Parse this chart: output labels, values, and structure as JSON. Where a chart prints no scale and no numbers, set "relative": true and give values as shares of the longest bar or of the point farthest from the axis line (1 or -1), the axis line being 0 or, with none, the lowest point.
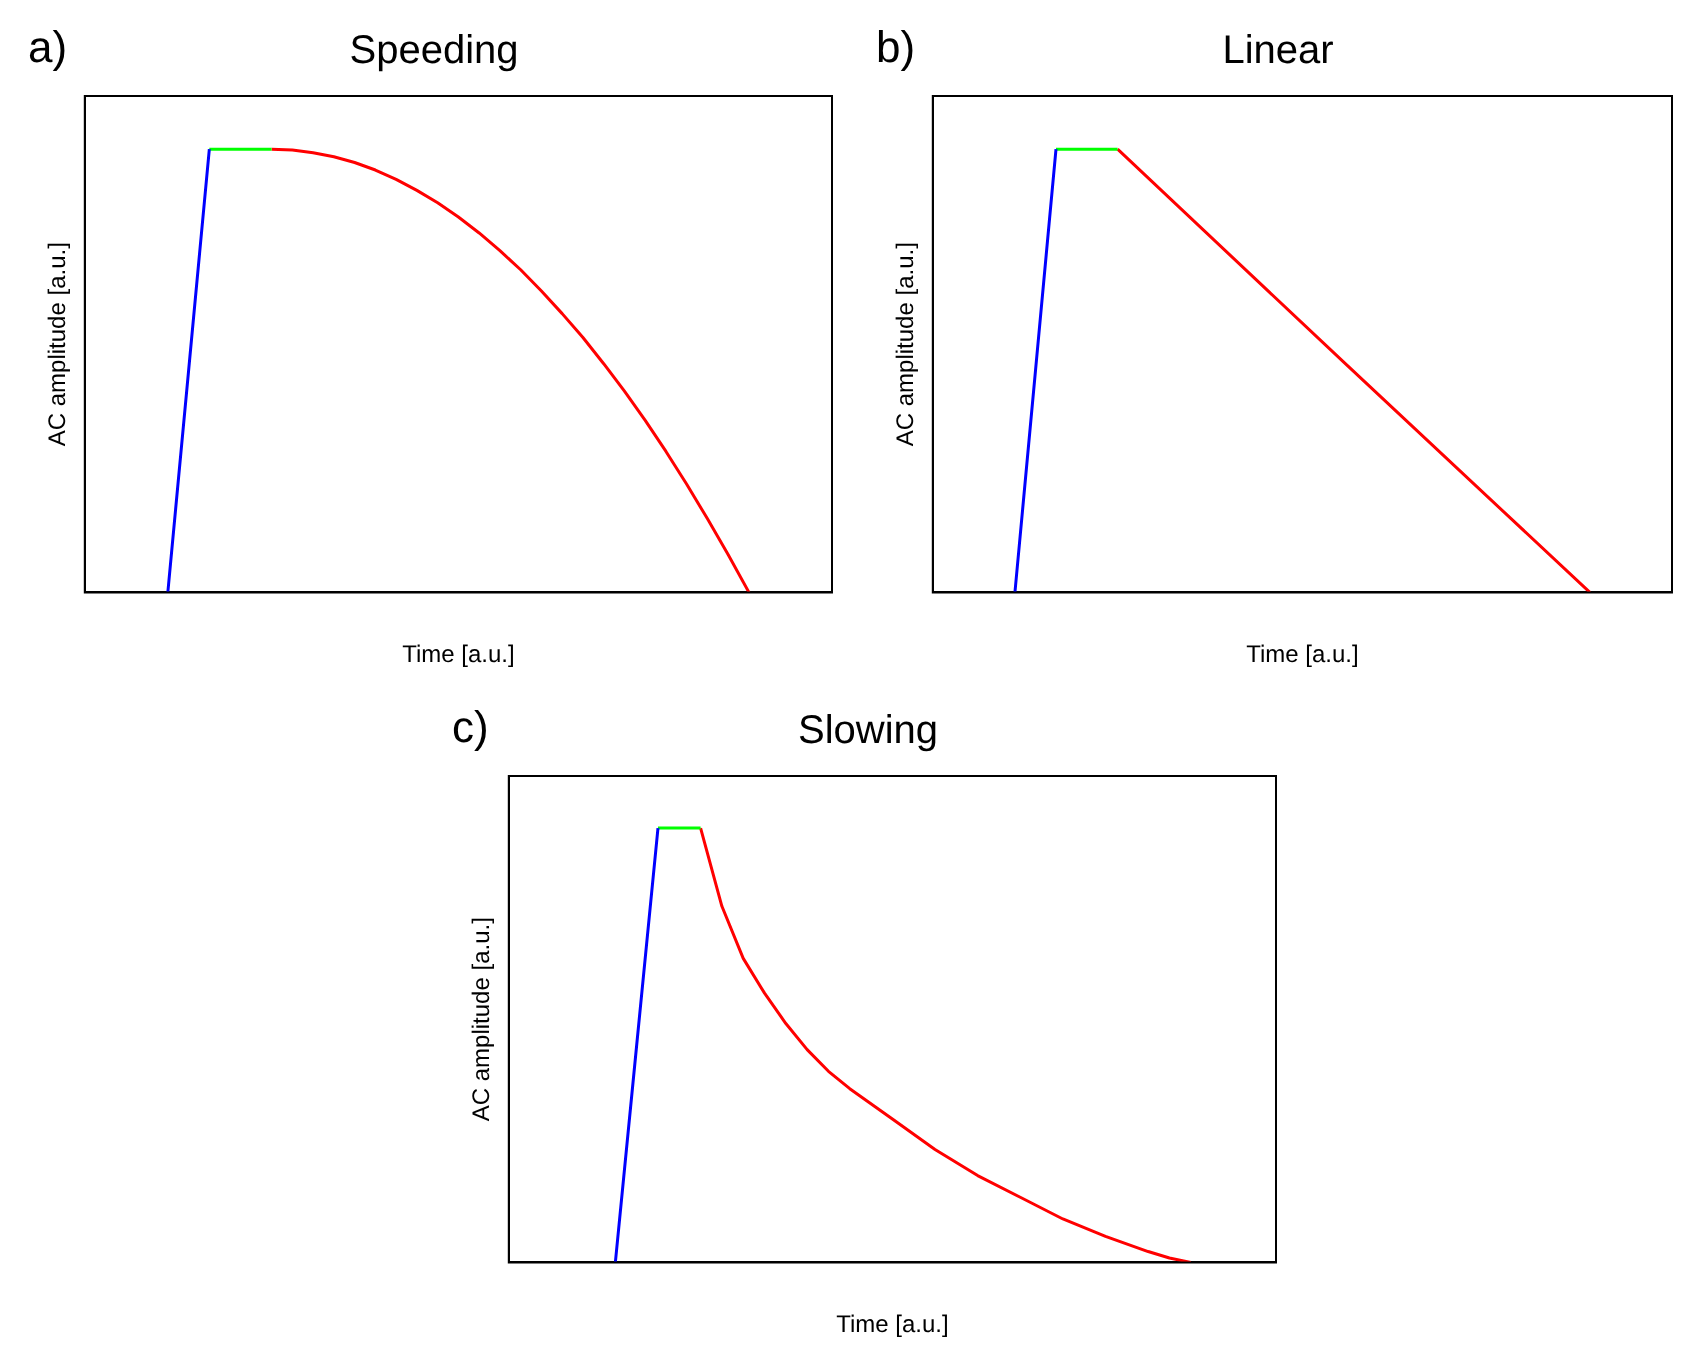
{
  "chart_data": [
    {
      "type": "line",
      "title": "Speeding",
      "xlabel": "Time [a.u.]",
      "ylabel": "AC amplitude [a.u.]",
      "annotations": [
        "a)"
      ],
      "relative": true,
      "grid": false,
      "legend": false,
      "categories": [
        null,
        null,
        null,
        null,
        null,
        null,
        null,
        null,
        null,
        null,
        null,
        null,
        null,
        null,
        null,
        null,
        null,
        null,
        null,
        null,
        null,
        null,
        null,
        null,
        null,
        null,
        null,
        null,
        null,
        null,
        null,
        null,
        null,
        null,
        null,
        null,
        null
      ],
      "series": [
        {
          "color": "#0000ff",
          "values": [
            null,
            null,
            null,
            null,
            0,
            0.5,
            1,
            null,
            null,
            null,
            null,
            null,
            null,
            null,
            null,
            null,
            null,
            null,
            null,
            null,
            null,
            null,
            null,
            null,
            null,
            null,
            null,
            null,
            null,
            null,
            null,
            null,
            null,
            null,
            null,
            null,
            null
          ]
        },
        {
          "color": "#00ff00",
          "values": [
            null,
            null,
            null,
            null,
            null,
            null,
            1,
            1,
            1,
            1,
            null,
            null,
            null,
            null,
            null,
            null,
            null,
            null,
            null,
            null,
            null,
            null,
            null,
            null,
            null,
            null,
            null,
            null,
            null,
            null,
            null,
            null,
            null,
            null,
            null,
            null,
            null
          ]
        },
        {
          "color": "#ff0000",
          "values": [
            null,
            null,
            null,
            null,
            null,
            null,
            null,
            null,
            null,
            1,
            0.998,
            0.992,
            0.983,
            0.97,
            0.953,
            0.932,
            0.907,
            0.879,
            0.847,
            0.811,
            0.771,
            0.728,
            0.68,
            0.629,
            0.575,
            0.516,
            0.454,
            0.388,
            0.318,
            0.244,
            0.166,
            0.085,
            0,
            null,
            null,
            null,
            null
          ]
        }
      ]
    },
    {
      "type": "line",
      "title": "Linear",
      "xlabel": "Time [a.u.]",
      "ylabel": "AC amplitude [a.u.]",
      "annotations": [
        "b)"
      ],
      "relative": true,
      "grid": false,
      "legend": false,
      "categories": [
        null,
        null,
        null,
        null,
        null,
        null,
        null,
        null,
        null,
        null,
        null,
        null,
        null,
        null,
        null,
        null,
        null,
        null,
        null,
        null,
        null,
        null,
        null,
        null,
        null,
        null,
        null,
        null,
        null,
        null,
        null,
        null,
        null,
        null,
        null,
        null,
        null
      ],
      "series": [
        {
          "color": "#0000ff",
          "values": [
            null,
            null,
            null,
            null,
            0,
            0.5,
            1,
            null,
            null,
            null,
            null,
            null,
            null,
            null,
            null,
            null,
            null,
            null,
            null,
            null,
            null,
            null,
            null,
            null,
            null,
            null,
            null,
            null,
            null,
            null,
            null,
            null,
            null,
            null,
            null,
            null,
            null
          ]
        },
        {
          "color": "#00ff00",
          "values": [
            null,
            null,
            null,
            null,
            null,
            null,
            1,
            1,
            1,
            1,
            null,
            null,
            null,
            null,
            null,
            null,
            null,
            null,
            null,
            null,
            null,
            null,
            null,
            null,
            null,
            null,
            null,
            null,
            null,
            null,
            null,
            null,
            null,
            null,
            null,
            null,
            null
          ]
        },
        {
          "color": "#ff0000",
          "values": [
            null,
            null,
            null,
            null,
            null,
            null,
            null,
            null,
            null,
            1,
            null,
            null,
            null,
            null,
            null,
            null,
            null,
            null,
            null,
            null,
            0.52,
            null,
            null,
            null,
            null,
            null,
            null,
            null,
            null,
            null,
            null,
            null,
            0,
            null,
            null,
            null,
            null
          ]
        }
      ]
    },
    {
      "type": "line",
      "title": "Slowing",
      "xlabel": "Time [a.u.]",
      "ylabel": "AC amplitude [a.u.]",
      "annotations": [
        "c)"
      ],
      "relative": true,
      "grid": false,
      "legend": false,
      "categories": [
        null,
        null,
        null,
        null,
        null,
        null,
        null,
        null,
        null,
        null,
        null,
        null,
        null,
        null,
        null,
        null,
        null,
        null,
        null,
        null,
        null,
        null,
        null,
        null,
        null,
        null,
        null,
        null,
        null,
        null,
        null,
        null,
        null,
        null,
        null,
        null,
        null
      ],
      "series": [
        {
          "color": "#0000ff",
          "values": [
            null,
            null,
            null,
            null,
            null,
            0,
            0.5,
            1,
            null,
            null,
            null,
            null,
            null,
            null,
            null,
            null,
            null,
            null,
            null,
            null,
            null,
            null,
            null,
            null,
            null,
            null,
            null,
            null,
            null,
            null,
            null,
            null,
            null,
            null,
            null,
            null,
            null
          ]
        },
        {
          "color": "#00ff00",
          "values": [
            null,
            null,
            null,
            null,
            null,
            null,
            null,
            1,
            1,
            1,
            null,
            null,
            null,
            null,
            null,
            null,
            null,
            null,
            null,
            null,
            null,
            null,
            null,
            null,
            null,
            null,
            null,
            null,
            null,
            null,
            null,
            null,
            null,
            null,
            null,
            null,
            null
          ]
        },
        {
          "color": "#ff0000",
          "values": [
            null,
            null,
            null,
            null,
            null,
            null,
            null,
            null,
            null,
            1,
            0.82,
            0.7,
            0.62,
            0.55,
            0.49,
            0.44,
            0.4,
            null,
            0.33,
            null,
            0.26,
            null,
            0.2,
            null,
            0.15,
            null,
            0.1,
            null,
            0.06,
            null,
            0.025,
            0.01,
            0,
            null,
            null,
            null,
            null
          ]
        }
      ]
    }
  ]
}
